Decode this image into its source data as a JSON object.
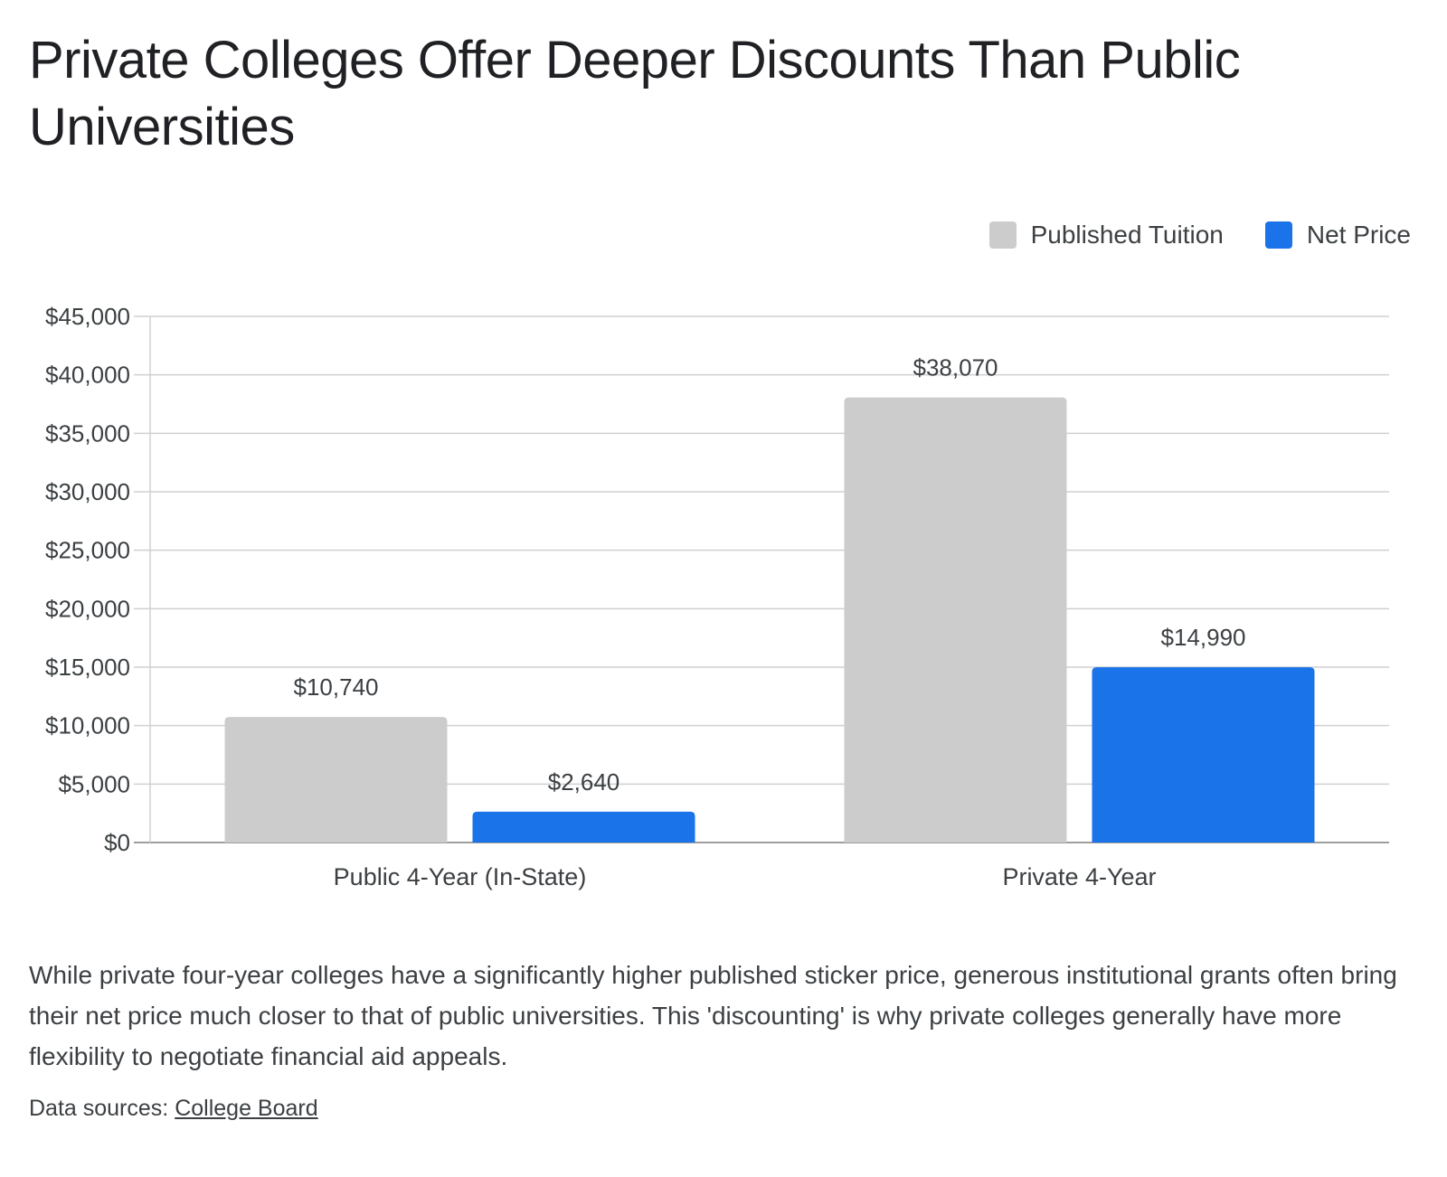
{
  "title": "Private Colleges Offer Deeper Discounts Than Public Universities",
  "description": "While private four-year colleges have a significantly higher published sticker price, generous institutional grants often bring their net price much closer to that of public universities. This 'discounting' is why private colleges generally have more flexibility to negotiate financial aid appeals.",
  "sources": {
    "prefix": "Data sources:",
    "link_text": "College Board"
  },
  "colors": {
    "published": "#cccccc",
    "net": "#1a73e8",
    "grid": "#d0d0d0",
    "axis": "#9e9e9e"
  },
  "chart_data": {
    "type": "bar",
    "title": "Private Colleges Offer Deeper Discounts Than Public Universities",
    "xlabel": "",
    "ylabel": "",
    "categories": [
      "Public 4-Year (In-State)",
      "Private 4-Year"
    ],
    "series": [
      {
        "name": "Published Tuition",
        "values": [
          10740,
          38070
        ],
        "labels": [
          "$10,740",
          "$38,070"
        ]
      },
      {
        "name": "Net Price",
        "values": [
          2640,
          14990
        ],
        "labels": [
          "$2,640",
          "$14,990"
        ]
      }
    ],
    "ylim": [
      0,
      45000
    ],
    "yticks": [
      0,
      5000,
      10000,
      15000,
      20000,
      25000,
      30000,
      35000,
      40000,
      45000
    ],
    "ytick_labels": [
      "$0",
      "$5,000",
      "$10,000",
      "$15,000",
      "$20,000",
      "$25,000",
      "$30,000",
      "$35,000",
      "$40,000",
      "$45,000"
    ],
    "grid": true,
    "legend_position": "top-right"
  }
}
